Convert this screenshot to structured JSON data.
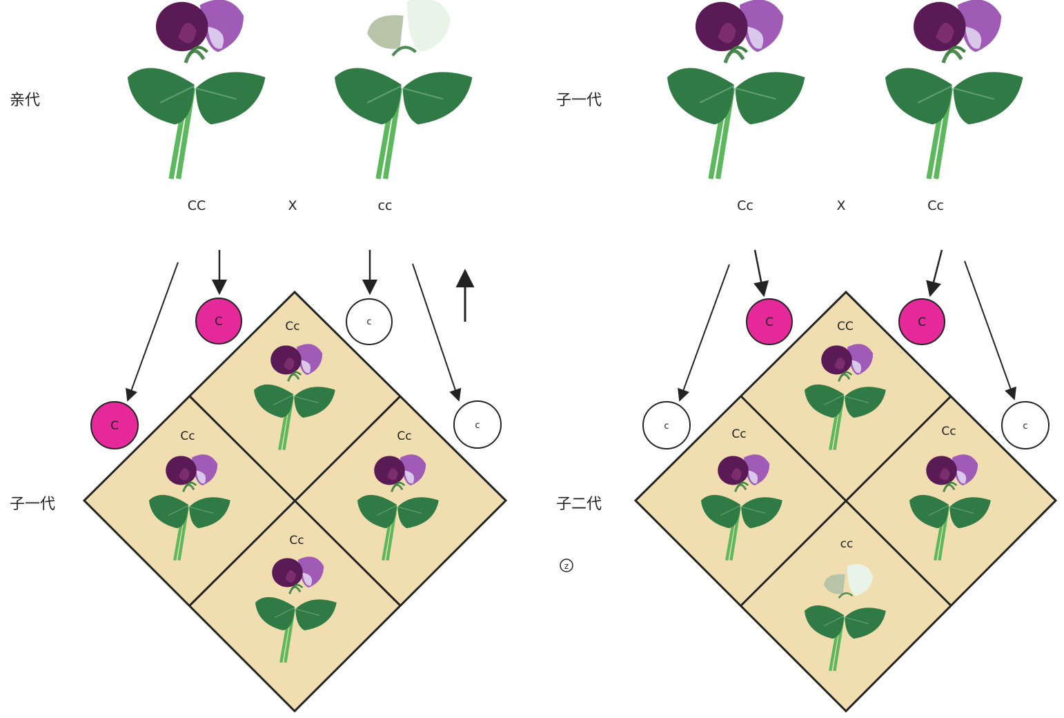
{
  "colors": {
    "cell_fill": "#f1deb0",
    "grid_line": "#222222",
    "dominant_gamete": "#e5299a",
    "recessive_gamete": "#ffffff",
    "purple_petal": "#a05bb7",
    "white_petal": "#e8f4e8",
    "leaf": "#2f7a45",
    "stem": "#5cb85c"
  },
  "icons": {
    "flower": "purple-pea-flower-icon",
    "white_flower": "white-pea-flower-icon",
    "arrow": "arrow-icon",
    "gamete": "gamete-circle-icon",
    "mark": "circled-z-mark"
  },
  "left_panel": {
    "parent_label": "亲代",
    "offspring_label": "子一代",
    "parent1": {
      "genotype": "CC",
      "flower": "purple"
    },
    "cross_symbol": "X",
    "parent2": {
      "genotype": "cc",
      "flower": "white"
    },
    "gametes_top": [
      "C",
      "c"
    ],
    "gametes_side": [
      "C",
      "c"
    ],
    "cells": [
      {
        "genotype": "Cc",
        "flower": "purple"
      },
      {
        "genotype": "Cc",
        "flower": "purple"
      },
      {
        "genotype": "Cc",
        "flower": "purple"
      },
      {
        "genotype": "Cc",
        "flower": "purple"
      }
    ]
  },
  "right_panel": {
    "parent_label": "子一代",
    "offspring_label": "子二代",
    "parent1": {
      "genotype": "Cc",
      "flower": "purple"
    },
    "cross_symbol": "X",
    "parent2": {
      "genotype": "Cc",
      "flower": "purple"
    },
    "gametes_top": [
      "C",
      "C"
    ],
    "gametes_side": [
      "c",
      "c"
    ],
    "cells": [
      {
        "genotype": "CC",
        "flower": "purple"
      },
      {
        "genotype": "Cc",
        "flower": "purple"
      },
      {
        "genotype": "Cc",
        "flower": "purple"
      },
      {
        "genotype": "cc",
        "flower": "white"
      }
    ]
  },
  "corner_mark": "z"
}
